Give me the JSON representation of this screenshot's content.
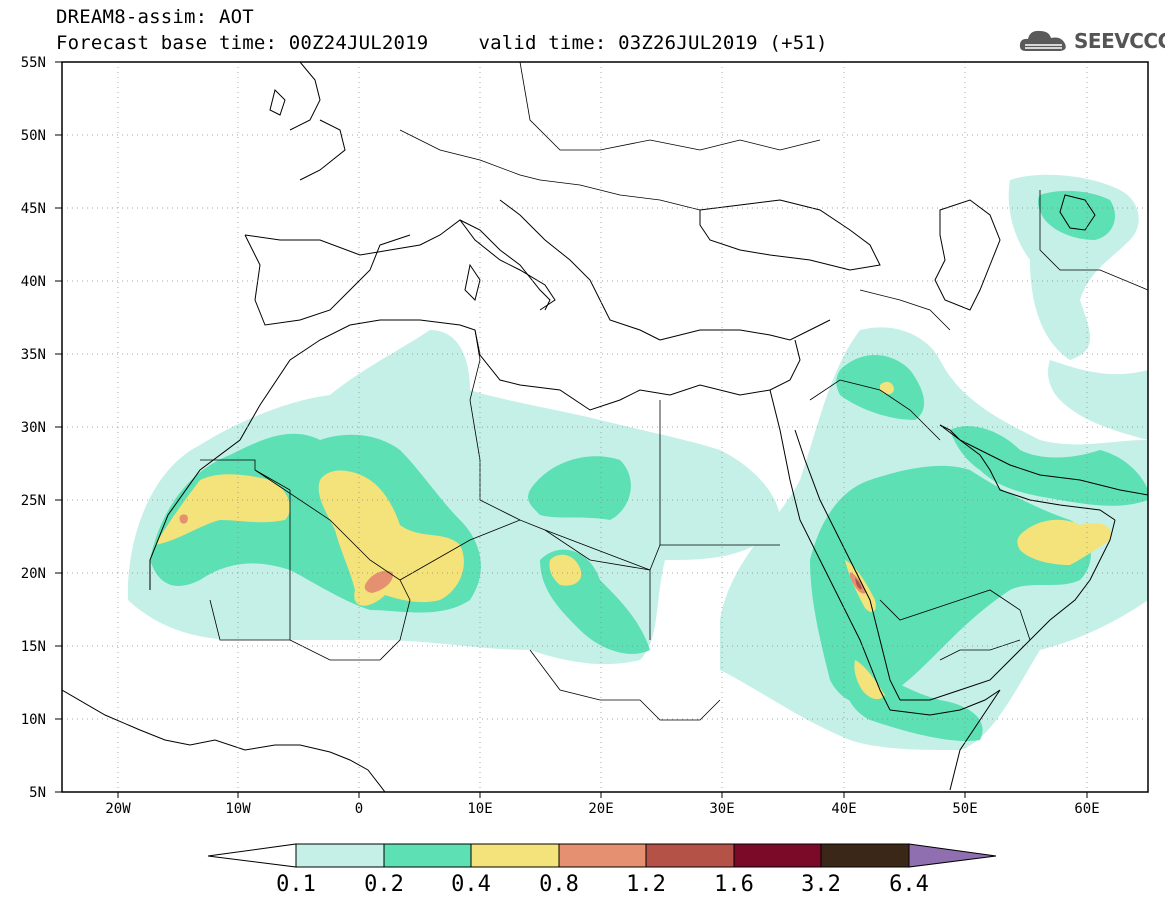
{
  "header": {
    "line1": "DREAM8-assim: AOT",
    "base_time": "Forecast base time: 00Z24JUL2019",
    "valid_time": "valid time: 03Z26JUL2019 (+51)"
  },
  "logo": {
    "text": "SEEVCCC",
    "icon": "cloud-icon"
  },
  "map": {
    "region": "North Africa, Middle East and Europe",
    "lon_range": [
      -25,
      65
    ],
    "lat_range": [
      5,
      55
    ],
    "lat_ticks": [
      "55N",
      "50N",
      "45N",
      "40N",
      "35N",
      "30N",
      "25N",
      "20N",
      "15N",
      "10N",
      "5N"
    ],
    "lon_ticks": [
      "20W",
      "10W",
      "0",
      "10E",
      "20E",
      "30E",
      "40E",
      "50E",
      "60E"
    ]
  },
  "colorbar": {
    "labels": [
      "0.1",
      "0.2",
      "0.4",
      "0.8",
      "1.2",
      "1.6",
      "3.2",
      "6.4"
    ],
    "colors": [
      "#ffffff",
      "#c4f0e8",
      "#5ce0b4",
      "#f4e27a",
      "#e59070",
      "#b55248",
      "#7a0a28",
      "#3a2718",
      "#8f6fb0"
    ]
  }
}
